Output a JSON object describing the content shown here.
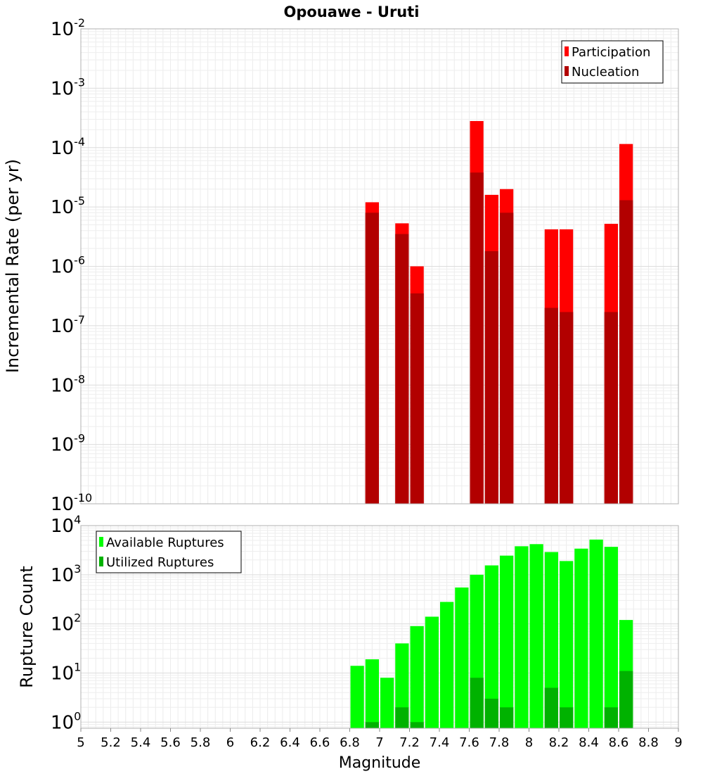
{
  "chart_data": [
    {
      "type": "bar",
      "title": "Opouawe - Uruti",
      "xlabel": "",
      "ylabel": "Incremental Rate (per yr)",
      "yscale": "log",
      "ylim": [
        1e-10,
        0.01
      ],
      "xlim": [
        5,
        9
      ],
      "grid": true,
      "legend": "top-right",
      "colors": {
        "Participation": "#ff0000",
        "Nucleation": "#b20000"
      },
      "y_ticks": [
        {
          "base": "10",
          "exp": "-10",
          "value": 1e-10
        },
        {
          "base": "10",
          "exp": "-9",
          "value": 1e-09
        },
        {
          "base": "10",
          "exp": "-8",
          "value": 1e-08
        },
        {
          "base": "10",
          "exp": "-7",
          "value": 1e-07
        },
        {
          "base": "10",
          "exp": "-6",
          "value": 1e-06
        },
        {
          "base": "10",
          "exp": "-5",
          "value": 1e-05
        },
        {
          "base": "10",
          "exp": "-4",
          "value": 0.0001
        },
        {
          "base": "10",
          "exp": "-3",
          "value": 0.001
        },
        {
          "base": "10",
          "exp": "-2",
          "value": 0.01
        }
      ],
      "x": [
        6.95,
        7.15,
        7.25,
        7.65,
        7.75,
        7.85,
        8.15,
        8.25,
        8.55,
        8.65
      ],
      "series": [
        {
          "name": "Participation",
          "values": [
            1.2e-05,
            5.3e-06,
            1e-06,
            0.00028,
            1.6e-05,
            2e-05,
            4.2e-06,
            4.2e-06,
            5.2e-06,
            0.000115
          ]
        },
        {
          "name": "Nucleation",
          "values": [
            8e-06,
            3.5e-06,
            3.5e-07,
            3.8e-05,
            1.8e-06,
            8e-06,
            2e-07,
            1.7e-07,
            1.7e-07,
            1.3e-05
          ]
        }
      ]
    },
    {
      "type": "bar",
      "title": "",
      "xlabel": "Magnitude",
      "ylabel": "Rupture Count",
      "yscale": "log",
      "ylim": [
        0.75,
        10000
      ],
      "xlim": [
        5,
        9
      ],
      "grid": true,
      "legend": "top-left",
      "colors": {
        "Available Ruptures": "#00ff00",
        "Utilized Ruptures": "#00b200"
      },
      "y_ticks": [
        {
          "base": "10",
          "exp": "0",
          "value": 1
        },
        {
          "base": "10",
          "exp": "1",
          "value": 10
        },
        {
          "base": "10",
          "exp": "2",
          "value": 100
        },
        {
          "base": "10",
          "exp": "3",
          "value": 1000
        },
        {
          "base": "10",
          "exp": "4",
          "value": 10000
        }
      ],
      "x_ticks": [
        "5",
        "5.2",
        "5.4",
        "5.6",
        "5.8",
        "6",
        "6.2",
        "6.4",
        "6.6",
        "6.8",
        "7",
        "7.2",
        "7.4",
        "7.6",
        "7.8",
        "8",
        "8.2",
        "8.4",
        "8.6",
        "8.8",
        "9"
      ],
      "x": [
        6.85,
        6.95,
        7.05,
        7.15,
        7.25,
        7.35,
        7.45,
        7.55,
        7.65,
        7.75,
        7.85,
        7.95,
        8.05,
        8.15,
        8.25,
        8.35,
        8.45,
        8.55,
        8.65
      ],
      "series": [
        {
          "name": "Available Ruptures",
          "values": [
            14,
            19,
            8,
            40,
            90,
            140,
            280,
            550,
            1000,
            1550,
            2450,
            3800,
            4200,
            2900,
            1900,
            3400,
            5200,
            3700,
            120
          ]
        },
        {
          "name": "Utilized Ruptures",
          "values": [
            0,
            1,
            0,
            2,
            1,
            0,
            0,
            0,
            8,
            3,
            2,
            0,
            0,
            5,
            2,
            0,
            0,
            2,
            11
          ]
        }
      ]
    }
  ]
}
